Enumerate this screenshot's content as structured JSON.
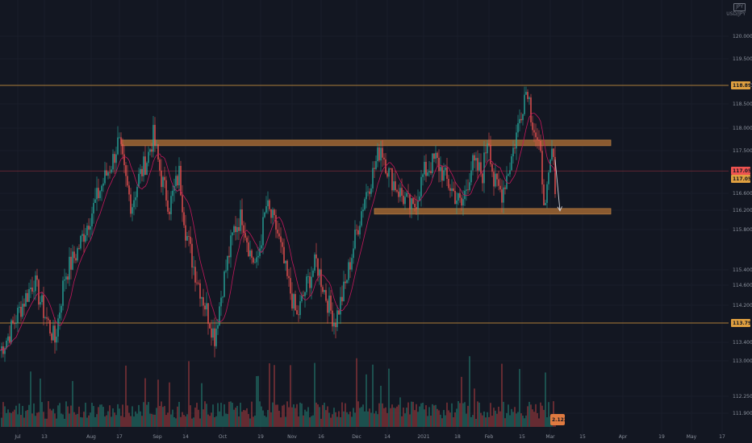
{
  "header": {
    "currency_box": "JPY",
    "currency_text": "USD/JPY"
  },
  "colors": {
    "background": "#131722",
    "grid": "#1e2230",
    "up": "#26a69a",
    "down": "#ef5350",
    "ma": "#c2185b",
    "level_line": "#e0a040",
    "zone_fill": "#8a5a30",
    "zone_border": "#b07840",
    "arrow": "#d1d4dc",
    "axis_text": "#8a909c"
  },
  "chart_data": {
    "type": "candlestick",
    "x_axis_labels": [
      "Jul",
      "13",
      "Aug",
      "17",
      "Sep",
      "14",
      "Oct",
      "19",
      "Nov",
      "16",
      "Dec",
      "14",
      "2021",
      "18",
      "Feb",
      "15",
      "Mar",
      "15",
      "Apr",
      "19",
      "May",
      "17"
    ],
    "y_axis_labels": [
      "120.000",
      "119.500",
      "118.900",
      "118.500",
      "118.000",
      "117.500",
      "116.600",
      "116.200",
      "115.800",
      "115.400",
      "114.600",
      "114.200",
      "113.400",
      "113.000",
      "112.250",
      "111.900"
    ],
    "ylim": [
      111.8,
      120.3
    ],
    "price_badges": [
      {
        "label": "118.894",
        "value": 118.894,
        "color": "#e0a040"
      },
      {
        "label": "117.056",
        "value": 117.056,
        "color": "#ef5350"
      },
      {
        "label": "117.054",
        "value": 116.92,
        "color": "#e0a040"
      },
      {
        "label": "113.792",
        "value": 113.792,
        "color": "#e0a040"
      }
    ],
    "volume_badge": {
      "label": "2.123",
      "value": 2.123
    },
    "horizontal_levels": [
      118.894,
      117.056,
      113.792
    ],
    "zones": [
      {
        "name": "resistance-zone",
        "from": "Aug 17",
        "to": "Mar 20",
        "low": 117.6,
        "high": 117.72
      },
      {
        "name": "support-zone",
        "from": "Dec 10",
        "to": "Mar 20",
        "low": 116.13,
        "high": 116.25
      }
    ],
    "price_path_anchors": [
      [
        0,
        113.2
      ],
      [
        10,
        113.5
      ],
      [
        25,
        114.1
      ],
      [
        42,
        114.7
      ],
      [
        55,
        114.0
      ],
      [
        68,
        113.4
      ],
      [
        80,
        114.8
      ],
      [
        95,
        115.3
      ],
      [
        110,
        116.0
      ],
      [
        125,
        116.7
      ],
      [
        140,
        117.3
      ],
      [
        147,
        117.7
      ],
      [
        155,
        116.9
      ],
      [
        163,
        116.3
      ],
      [
        172,
        116.9
      ],
      [
        182,
        117.3
      ],
      [
        190,
        117.8
      ],
      [
        200,
        116.9
      ],
      [
        210,
        116.3
      ],
      [
        222,
        117.0
      ],
      [
        230,
        115.8
      ],
      [
        240,
        115.0
      ],
      [
        252,
        114.3
      ],
      [
        266,
        113.5
      ],
      [
        276,
        114.6
      ],
      [
        290,
        115.8
      ],
      [
        300,
        116.1
      ],
      [
        310,
        115.3
      ],
      [
        318,
        115.0
      ],
      [
        330,
        116.3
      ],
      [
        343,
        115.8
      ],
      [
        355,
        114.8
      ],
      [
        368,
        113.9
      ],
      [
        380,
        114.6
      ],
      [
        392,
        115.1
      ],
      [
        405,
        114.3
      ],
      [
        415,
        113.8
      ],
      [
        428,
        114.6
      ],
      [
        440,
        115.6
      ],
      [
        452,
        116.5
      ],
      [
        462,
        117.0
      ],
      [
        472,
        117.6
      ],
      [
        482,
        117.0
      ],
      [
        495,
        116.6
      ],
      [
        512,
        116.2
      ],
      [
        525,
        117.0
      ],
      [
        540,
        117.3
      ],
      [
        555,
        116.8
      ],
      [
        572,
        116.3
      ],
      [
        585,
        117.2
      ],
      [
        598,
        117.0
      ],
      [
        605,
        117.9
      ],
      [
        612,
        116.8
      ],
      [
        622,
        116.6
      ],
      [
        632,
        117.2
      ],
      [
        642,
        118.0
      ],
      [
        650,
        118.7
      ],
      [
        654,
        118.85
      ],
      [
        658,
        118.3
      ],
      [
        663,
        117.9
      ],
      [
        670,
        117.3
      ],
      [
        676,
        116.2
      ],
      [
        684,
        117.5
      ],
      [
        688,
        116.8
      ]
    ],
    "forecast_arrow": {
      "from": [
        688,
        117.3
      ],
      "to": [
        694,
        116.2
      ]
    }
  }
}
